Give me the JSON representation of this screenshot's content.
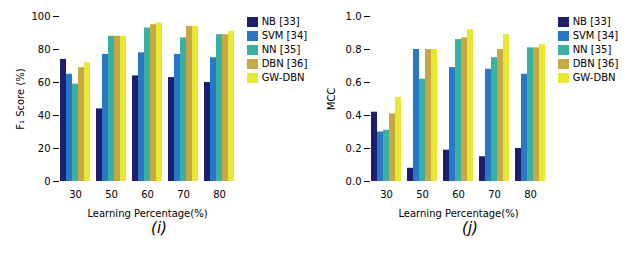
{
  "chart_data": [
    {
      "type": "bar",
      "title": "(i)",
      "xlabel": "Learning Percentage(%)",
      "ylabel": "F₁ Score (%)",
      "categories": [
        "30",
        "50",
        "60",
        "70",
        "80"
      ],
      "series": [
        {
          "name": "NB [33]",
          "color": "#1e1e6e",
          "values": [
            74,
            44,
            64,
            63,
            60
          ]
        },
        {
          "name": "SVM [34]",
          "color": "#2878c8",
          "values": [
            65,
            77,
            78,
            77,
            75
          ]
        },
        {
          "name": "NN [35]",
          "color": "#3ab0a0",
          "values": [
            59,
            88,
            93,
            87,
            89
          ]
        },
        {
          "name": "DBN [36]",
          "color": "#c8a844",
          "values": [
            69,
            88,
            95,
            94,
            89
          ]
        },
        {
          "name": "GW-DBN",
          "color": "#e8e830",
          "values": [
            72,
            88,
            96,
            94,
            91
          ]
        }
      ],
      "ylim": [
        0,
        100
      ],
      "yticks": [
        0,
        20,
        40,
        60,
        80,
        100
      ],
      "grid": false,
      "legend": "right"
    },
    {
      "type": "bar",
      "title": "(j)",
      "xlabel": "Learning Percentage(%)",
      "ylabel": "MCC",
      "categories": [
        "30",
        "50",
        "60",
        "70",
        "80"
      ],
      "series": [
        {
          "name": "NB [33]",
          "color": "#1e1e6e",
          "values": [
            0.42,
            0.08,
            0.19,
            0.15,
            0.2
          ]
        },
        {
          "name": "SVM [34]",
          "color": "#2878c8",
          "values": [
            0.3,
            0.8,
            0.69,
            0.68,
            0.65
          ]
        },
        {
          "name": "NN [35]",
          "color": "#3ab0a0",
          "values": [
            0.31,
            0.62,
            0.86,
            0.75,
            0.81
          ]
        },
        {
          "name": "DBN [36]",
          "color": "#c8a844",
          "values": [
            0.41,
            0.8,
            0.87,
            0.8,
            0.81
          ]
        },
        {
          "name": "GW-DBN",
          "color": "#e8e830",
          "values": [
            0.51,
            0.8,
            0.92,
            0.89,
            0.83
          ]
        }
      ],
      "ylim": [
        0,
        1
      ],
      "yticks": [
        {
          "value": 0,
          "label": "0.0"
        },
        0.2,
        0.4,
        0.6,
        0.8,
        {
          "value": 1,
          "label": "1.0"
        }
      ],
      "grid": false,
      "legend": "right"
    }
  ]
}
